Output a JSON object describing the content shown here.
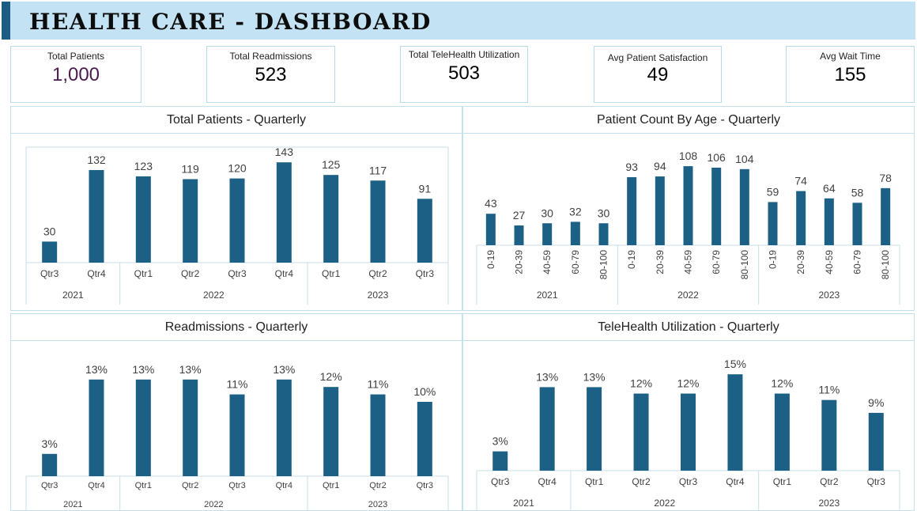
{
  "header": {
    "title": "HEALTH CARE - DASHBOARD"
  },
  "kpis": [
    {
      "label": "Total Patients",
      "value": "1,000"
    },
    {
      "label": "Total Readmissions",
      "value": "523"
    },
    {
      "label": "Total TeleHealth Utilization",
      "value": "503"
    },
    {
      "label": "Avg Patient Satisfaction",
      "value": "49"
    },
    {
      "label": "Avg Wait Time",
      "value": "155"
    }
  ],
  "colors": {
    "bar": "#1c6185",
    "header_bg": "#c3e3f4",
    "header_accent": "#1c5e83",
    "kpi_accent": "#4b1a4f"
  },
  "chart_data": [
    {
      "type": "bar",
      "title": "Total Patients - Quarterly",
      "categories": [
        "Qtr3",
        "Qtr4",
        "Qtr1",
        "Qtr2",
        "Qtr3",
        "Qtr4",
        "Qtr1",
        "Qtr2",
        "Qtr3"
      ],
      "groups": [
        {
          "label": "2021",
          "count": 2
        },
        {
          "label": "2022",
          "count": 4
        },
        {
          "label": "2023",
          "count": 3
        }
      ],
      "values": [
        30,
        132,
        123,
        119,
        120,
        143,
        125,
        117,
        91
      ],
      "value_labels": [
        "30",
        "132",
        "123",
        "119",
        "120",
        "143",
        "125",
        "117",
        "91"
      ],
      "ylim": [
        0,
        150
      ],
      "grid": false
    },
    {
      "type": "bar",
      "title": "Patient Count By Age - Quarterly",
      "categories": [
        "0-19",
        "20-39",
        "40-59",
        "60-79",
        "80-100",
        "0-19",
        "20-39",
        "40-59",
        "60-79",
        "80-100",
        "0-19",
        "20-39",
        "40-59",
        "60-79",
        "80-100"
      ],
      "groups": [
        {
          "label": "2021",
          "count": 5
        },
        {
          "label": "2022",
          "count": 5
        },
        {
          "label": "2023",
          "count": 5
        }
      ],
      "values": [
        43,
        27,
        30,
        32,
        30,
        93,
        94,
        108,
        106,
        104,
        59,
        74,
        64,
        58,
        78
      ],
      "value_labels": [
        "43",
        "27",
        "30",
        "32",
        "30",
        "93",
        "94",
        "108",
        "106",
        "104",
        "59",
        "74",
        "64",
        "58",
        "78"
      ],
      "ylim": [
        0,
        120
      ],
      "grid": false
    },
    {
      "type": "bar",
      "title": "Readmissions - Quarterly",
      "categories": [
        "Qtr3",
        "Qtr4",
        "Qtr1",
        "Qtr2",
        "Qtr3",
        "Qtr4",
        "Qtr1",
        "Qtr2",
        "Qtr3"
      ],
      "groups": [
        {
          "label": "2021",
          "count": 2
        },
        {
          "label": "2022",
          "count": 4
        },
        {
          "label": "2023",
          "count": 3
        }
      ],
      "values": [
        3,
        13,
        13,
        13,
        11,
        13,
        12,
        11,
        10
      ],
      "value_labels": [
        "3%",
        "13%",
        "13%",
        "13%",
        "11%",
        "13%",
        "12%",
        "11%",
        "10%"
      ],
      "ylim": [
        0,
        15
      ],
      "grid": false
    },
    {
      "type": "bar",
      "title": "TeleHealth Utilization - Quarterly",
      "categories": [
        "Qtr3",
        "Qtr4",
        "Qtr1",
        "Qtr2",
        "Qtr3",
        "Qtr4",
        "Qtr1",
        "Qtr2",
        "Qtr3"
      ],
      "groups": [
        {
          "label": "2021",
          "count": 2
        },
        {
          "label": "2022",
          "count": 4
        },
        {
          "label": "2023",
          "count": 3
        }
      ],
      "values": [
        3,
        13,
        13,
        12,
        12,
        15,
        12,
        11,
        9
      ],
      "value_labels": [
        "3%",
        "13%",
        "13%",
        "12%",
        "12%",
        "15%",
        "12%",
        "11%",
        "9%"
      ],
      "ylim": [
        0,
        16.5
      ],
      "grid": false
    }
  ]
}
